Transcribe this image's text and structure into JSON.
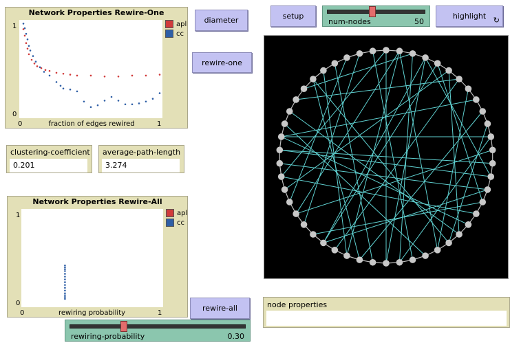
{
  "plot_one": {
    "title": "Network Properties Rewire-One",
    "y_max": "1",
    "y_min": "0",
    "x_min": "0",
    "x_max": "1",
    "xlabel": "fraction of edges rewired",
    "legend": [
      {
        "name": "apl",
        "color": "#d13b3b"
      },
      {
        "name": "cc",
        "color": "#2f5fa6"
      }
    ]
  },
  "plot_all": {
    "title": "Network Properties Rewire-All",
    "y_max": "1",
    "y_min": "0",
    "x_min": "0",
    "x_max": "1",
    "xlabel": "rewiring probability",
    "legend": [
      {
        "name": "apl",
        "color": "#d13b3b"
      },
      {
        "name": "cc",
        "color": "#2f5fa6"
      }
    ]
  },
  "chart_data": [
    {
      "type": "scatter",
      "title": "Network Properties Rewire-One",
      "xlabel": "fraction of edges rewired",
      "ylabel": "",
      "xlim": [
        0,
        1
      ],
      "ylim": [
        0,
        1
      ],
      "series": [
        {
          "name": "apl",
          "color": "#d13b3b",
          "points": [
            [
              0.01,
              0.93
            ],
            [
              0.02,
              0.86
            ],
            [
              0.03,
              0.78
            ],
            [
              0.04,
              0.72
            ],
            [
              0.05,
              0.66
            ],
            [
              0.07,
              0.6
            ],
            [
              0.09,
              0.56
            ],
            [
              0.11,
              0.53
            ],
            [
              0.14,
              0.51
            ],
            [
              0.17,
              0.49
            ],
            [
              0.2,
              0.48
            ],
            [
              0.25,
              0.46
            ],
            [
              0.3,
              0.45
            ],
            [
              0.35,
              0.44
            ],
            [
              0.4,
              0.43
            ],
            [
              0.5,
              0.43
            ],
            [
              0.6,
              0.42
            ],
            [
              0.7,
              0.42
            ],
            [
              0.8,
              0.43
            ],
            [
              0.9,
              0.43
            ],
            [
              1.0,
              0.44
            ]
          ]
        },
        {
          "name": "cc",
          "color": "#2f5fa6",
          "points": [
            [
              0.01,
              0.99
            ],
            [
              0.02,
              0.94
            ],
            [
              0.03,
              0.88
            ],
            [
              0.04,
              0.82
            ],
            [
              0.05,
              0.75
            ],
            [
              0.06,
              0.7
            ],
            [
              0.08,
              0.64
            ],
            [
              0.1,
              0.58
            ],
            [
              0.13,
              0.52
            ],
            [
              0.16,
              0.47
            ],
            [
              0.2,
              0.43
            ],
            [
              0.25,
              0.36
            ],
            [
              0.28,
              0.32
            ],
            [
              0.3,
              0.29
            ],
            [
              0.35,
              0.28
            ],
            [
              0.4,
              0.26
            ],
            [
              0.45,
              0.15
            ],
            [
              0.5,
              0.09
            ],
            [
              0.55,
              0.11
            ],
            [
              0.6,
              0.16
            ],
            [
              0.65,
              0.2
            ],
            [
              0.7,
              0.16
            ],
            [
              0.75,
              0.12
            ],
            [
              0.8,
              0.12
            ],
            [
              0.85,
              0.13
            ],
            [
              0.9,
              0.15
            ],
            [
              0.95,
              0.18
            ],
            [
              1.0,
              0.24
            ]
          ]
        }
      ]
    },
    {
      "type": "scatter",
      "title": "Network Properties Rewire-All",
      "xlabel": "rewiring probability",
      "ylabel": "",
      "xlim": [
        0,
        1
      ],
      "ylim": [
        0,
        1
      ],
      "series": [
        {
          "name": "apl",
          "color": "#d13b3b",
          "points": []
        },
        {
          "name": "cc",
          "color": "#2f5fa6",
          "points": [
            [
              0.3,
              0.42
            ],
            [
              0.3,
              0.4
            ],
            [
              0.3,
              0.38
            ],
            [
              0.3,
              0.36
            ],
            [
              0.3,
              0.33
            ],
            [
              0.3,
              0.3
            ],
            [
              0.3,
              0.27
            ],
            [
              0.3,
              0.24
            ],
            [
              0.3,
              0.21
            ],
            [
              0.3,
              0.18
            ],
            [
              0.3,
              0.15
            ],
            [
              0.3,
              0.12
            ],
            [
              0.3,
              0.1
            ],
            [
              0.3,
              0.08
            ],
            [
              0.3,
              0.06
            ]
          ]
        }
      ]
    }
  ],
  "buttons": {
    "diameter": "diameter",
    "rewire_one": "rewire-one",
    "rewire_all": "rewire-all",
    "setup": "setup",
    "highlight": "highlight"
  },
  "monitors": {
    "clustering": {
      "label": "clustering-coefficient",
      "value": "0.201"
    },
    "apl": {
      "label": "average-path-length",
      "value": "3.274"
    }
  },
  "sliders": {
    "num_nodes": {
      "label": "num-nodes",
      "value": "50",
      "fraction": 0.45
    },
    "rewiring": {
      "label": "rewiring-probability",
      "value": "0.30",
      "fraction": 0.3
    }
  },
  "output": {
    "label": "node properties",
    "content": ""
  },
  "network": {
    "node_count": 50,
    "node_color": "#c8c8c8",
    "ring_color": "#bdbdbd",
    "edge_color": "#5fd0d0",
    "chords": [
      [
        1,
        21
      ],
      [
        1,
        28
      ],
      [
        1,
        33
      ],
      [
        2,
        24
      ],
      [
        3,
        14
      ],
      [
        3,
        25
      ],
      [
        3,
        30
      ],
      [
        4,
        16
      ],
      [
        5,
        19
      ],
      [
        5,
        35
      ],
      [
        6,
        29
      ],
      [
        7,
        21
      ],
      [
        9,
        27
      ],
      [
        10,
        20
      ],
      [
        11,
        24
      ],
      [
        12,
        33
      ],
      [
        13,
        38
      ],
      [
        15,
        30
      ],
      [
        16,
        31
      ],
      [
        17,
        36
      ],
      [
        19,
        41
      ],
      [
        20,
        44
      ],
      [
        22,
        40
      ],
      [
        23,
        49
      ],
      [
        26,
        46
      ],
      [
        28,
        45
      ],
      [
        32,
        48
      ],
      [
        34,
        47
      ],
      [
        36,
        0
      ],
      [
        39,
        11
      ],
      [
        42,
        6
      ],
      [
        0,
        25
      ],
      [
        4,
        30
      ],
      [
        8,
        39
      ],
      [
        14,
        38
      ],
      [
        37,
        15
      ],
      [
        43,
        2
      ],
      [
        44,
        27
      ],
      [
        18,
        39
      ]
    ]
  }
}
